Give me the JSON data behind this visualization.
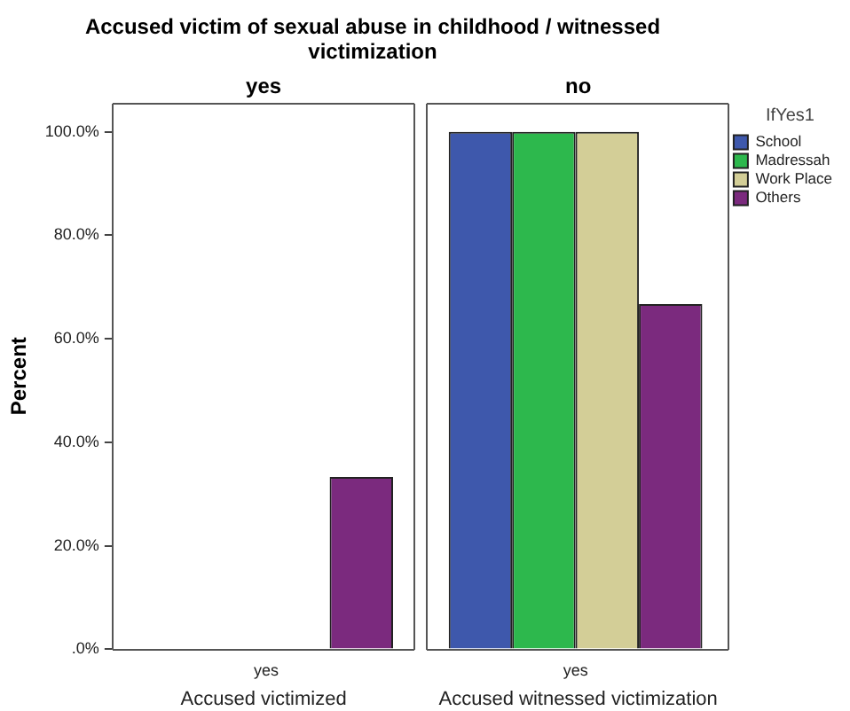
{
  "chart_data": {
    "type": "bar",
    "title": "Accused victim of sexual abuse in childhood / witnessed victimization",
    "ylabel": "Percent",
    "categories": [
      "yes",
      "yes"
    ],
    "series": [
      {
        "name": "School",
        "color": "#3e58ac",
        "values": [
          0,
          100
        ]
      },
      {
        "name": "Madressah",
        "color": "#2db84d",
        "values": [
          0,
          100
        ]
      },
      {
        "name": "Work Place",
        "color": "#d3ce97",
        "values": [
          0,
          100
        ]
      },
      {
        "name": "Others",
        "color": "#7b2a7e",
        "values": [
          33.3,
          66.7
        ]
      }
    ],
    "ylim": [
      0,
      105.6
    ],
    "yticks": [
      {
        "value": 0,
        "label": ".0%"
      },
      {
        "value": 20,
        "label": "20.0%"
      },
      {
        "value": 40,
        "label": "40.0%"
      },
      {
        "value": 60,
        "label": "60.0%"
      },
      {
        "value": 80,
        "label": "80.0%"
      },
      {
        "value": 100,
        "label": "100.0%"
      }
    ],
    "grid": false,
    "legend": "top right",
    "legend_title": "IfYes1",
    "annotations": [
      "yes",
      "no",
      "Accused victimized",
      "Accused witnessed victimization"
    ]
  }
}
